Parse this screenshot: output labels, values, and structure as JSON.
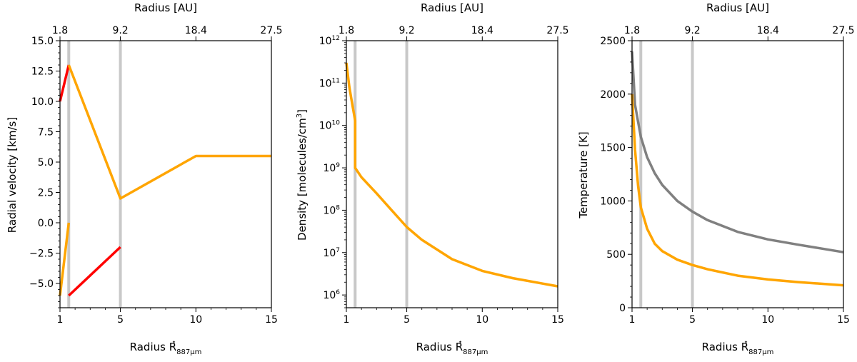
{
  "chart_data": [
    {
      "type": "line",
      "xlabel": "Radius R*887μm",
      "ylabel": "Radial velocity [km/s]",
      "top_xlabel": "Radius [AU]",
      "xlim": [
        1,
        15
      ],
      "ylim": [
        -7,
        15
      ],
      "xticks": [
        1,
        5,
        10,
        15
      ],
      "xtick_labels": [
        "1",
        "5",
        "10",
        "15"
      ],
      "yticks": [
        -5.0,
        -2.5,
        0.0,
        2.5,
        5.0,
        7.5,
        10.0,
        12.5,
        15.0
      ],
      "ytick_labels": [
        "−5.0",
        "−2.5",
        "0.0",
        "2.5",
        "5.0",
        "7.5",
        "10.0",
        "12.5",
        "15.0"
      ],
      "top_xticks": [
        1,
        5,
        10,
        15
      ],
      "top_xtick_labels": [
        "1.8",
        "9.2",
        "18.4",
        "27.5"
      ],
      "yscale": "linear",
      "vlines": [
        1.58,
        5
      ],
      "grid": false,
      "series": [
        {
          "color": "#ff0000",
          "x": [
            1,
            1.58
          ],
          "y": [
            10,
            13
          ]
        },
        {
          "color": "#ffa500",
          "x": [
            1.58,
            5,
            10,
            15
          ],
          "y": [
            13,
            2,
            5.5,
            5.5
          ]
        },
        {
          "color": "#ffa500",
          "x": [
            1,
            1.58
          ],
          "y": [
            -6,
            0
          ]
        },
        {
          "color": "#ff0000",
          "x": [
            1.58,
            5
          ],
          "y": [
            -6,
            -2
          ]
        }
      ]
    },
    {
      "type": "line",
      "xlabel": "Radius R*887μm",
      "ylabel": "Density [molecules/cm3]",
      "top_xlabel": "Radius [AU]",
      "xlim": [
        1,
        15
      ],
      "ylim": [
        500000,
        1000000000000
      ],
      "xticks": [
        1,
        5,
        10,
        15
      ],
      "xtick_labels": [
        "1",
        "5",
        "10",
        "15"
      ],
      "yticks": [
        1000000,
        10000000,
        100000000,
        1000000000,
        10000000000,
        100000000000,
        1000000000000
      ],
      "ytick_labels": [
        "10^6",
        "10^7",
        "10^8",
        "10^9",
        "10^10",
        "10^11",
        "10^12"
      ],
      "top_xticks": [
        1,
        5,
        10,
        15
      ],
      "top_xtick_labels": [
        "1.8",
        "9.2",
        "18.4",
        "27.5"
      ],
      "yscale": "log",
      "vlines": [
        1.58,
        5
      ],
      "grid": false,
      "series": [
        {
          "color": "#ffa500",
          "x": [
            1,
            1.2,
            1.4,
            1.58,
            1.58,
            2,
            3,
            4,
            5,
            6,
            8,
            10,
            12,
            15
          ],
          "y": [
            300000000000,
            80000000000,
            30000000000,
            13000000000,
            1000000000,
            600000000,
            250000000,
            100000000,
            40000000,
            20000000,
            7000000,
            3700000,
            2500000,
            1600000
          ]
        }
      ]
    },
    {
      "type": "line",
      "xlabel": "Radius R*887μm",
      "ylabel": "Temperature [K]",
      "top_xlabel": "Radius [AU]",
      "xlim": [
        1,
        15
      ],
      "ylim": [
        0,
        2500
      ],
      "xticks": [
        1,
        5,
        10,
        15
      ],
      "xtick_labels": [
        "1",
        "5",
        "10",
        "15"
      ],
      "yticks": [
        0,
        500,
        1000,
        1500,
        2000,
        2500
      ],
      "ytick_labels": [
        "0",
        "500",
        "1000",
        "1500",
        "2000",
        "2500"
      ],
      "top_xticks": [
        1,
        5,
        10,
        15
      ],
      "top_xtick_labels": [
        "1.8",
        "9.2",
        "18.4",
        "27.5"
      ],
      "yscale": "linear",
      "vlines": [
        1.58,
        5
      ],
      "grid": false,
      "series": [
        {
          "color": "#808080",
          "x": [
            1,
            1.2,
            1.4,
            1.58,
            2,
            2.5,
            3,
            4,
            5,
            6,
            8,
            10,
            12,
            15
          ],
          "y": [
            2400,
            1900,
            1740,
            1600,
            1410,
            1260,
            1150,
            1000,
            900,
            820,
            710,
            640,
            590,
            520
          ]
        },
        {
          "color": "#ffa500",
          "x": [
            1,
            1.2,
            1.4,
            1.58,
            2,
            2.5,
            3,
            4,
            5,
            6,
            8,
            10,
            12,
            15
          ],
          "y": [
            2000,
            1480,
            1140,
            940,
            740,
            600,
            530,
            450,
            400,
            360,
            300,
            265,
            240,
            210
          ]
        }
      ]
    }
  ]
}
